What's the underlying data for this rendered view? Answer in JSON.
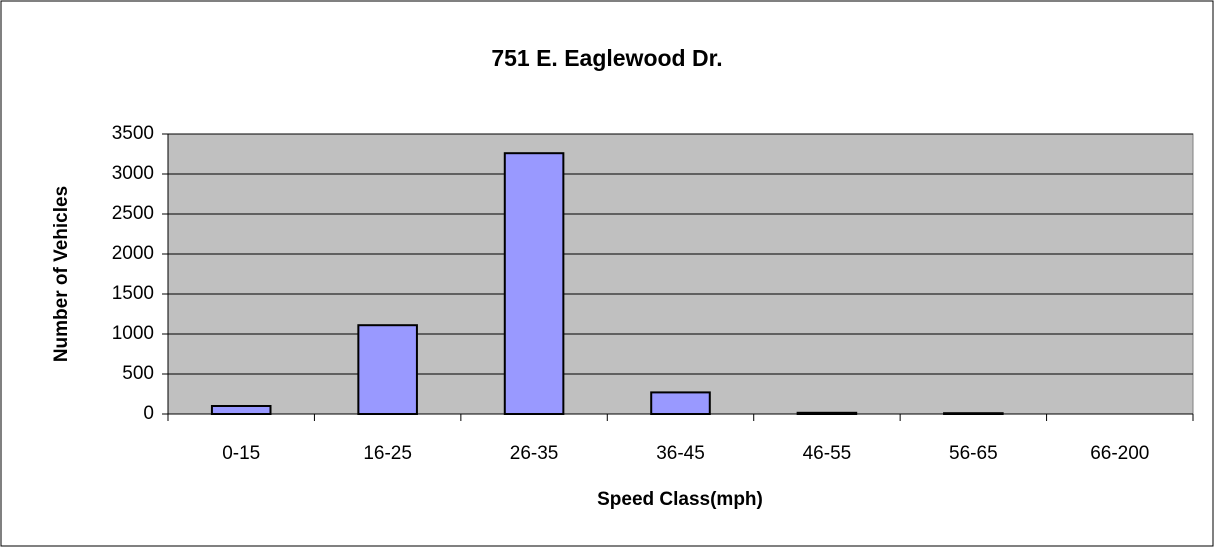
{
  "chart_data": {
    "type": "bar",
    "title": "751 E. Eaglewood Dr.",
    "x_label": "Speed Class(mph)",
    "y_label": "Number of Vehicles",
    "categories": [
      "0-15",
      "16-25",
      "26-35",
      "36-45",
      "46-55",
      "56-65",
      "66-200"
    ],
    "values": [
      100,
      1110,
      3260,
      270,
      15,
      10,
      0
    ],
    "color": "#9999ff",
    "ylim": [
      0,
      3500
    ],
    "yticks": [
      0,
      500,
      1000,
      1500,
      2000,
      2500,
      3000,
      3500
    ],
    "grid": true
  }
}
